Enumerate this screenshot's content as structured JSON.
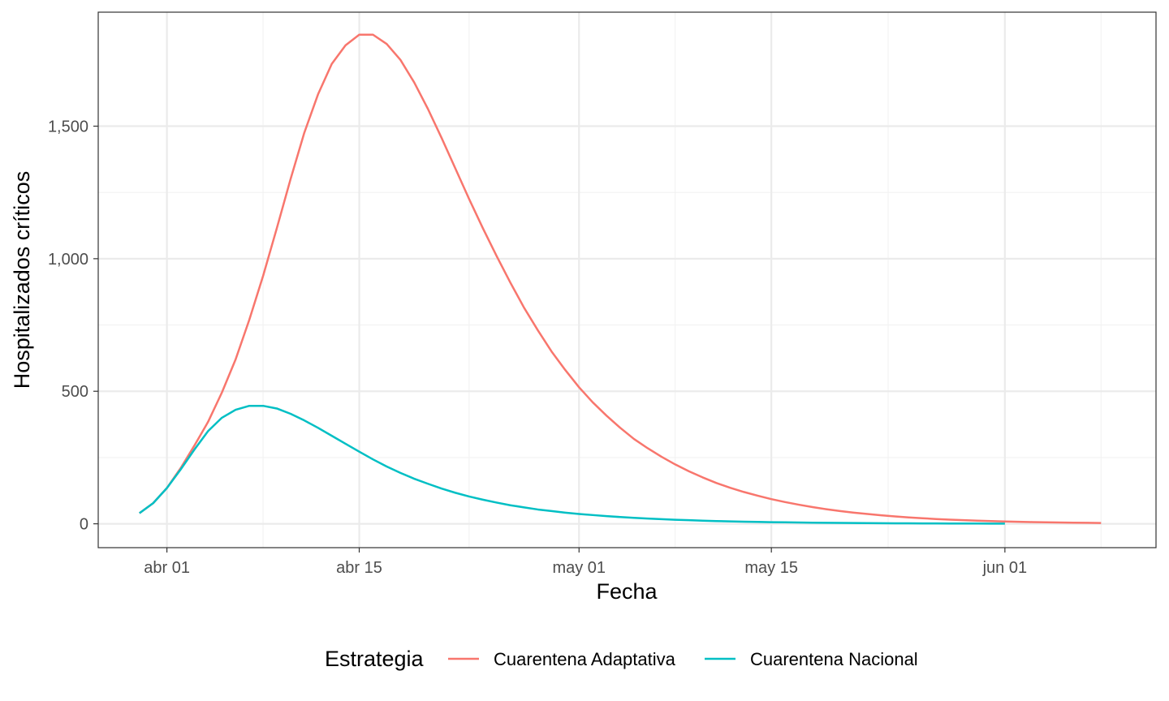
{
  "chart_data": {
    "type": "line",
    "xlabel": "Fecha",
    "ylabel": "Hospitalizados críticos",
    "x_tick_labels": [
      {
        "date": "2020-04-01",
        "label": "abr 01"
      },
      {
        "date": "2020-04-15",
        "label": "abr 15"
      },
      {
        "date": "2020-05-01",
        "label": "may 01"
      },
      {
        "date": "2020-05-15",
        "label": "may 15"
      },
      {
        "date": "2020-06-01",
        "label": "jun 01"
      }
    ],
    "y_ticks": [
      0,
      500,
      1000,
      1500
    ],
    "y_tick_labels": [
      "0",
      "500",
      "1,000",
      "1,500"
    ],
    "xlim": [
      "2020-03-27",
      "2020-06-12"
    ],
    "ylim": [
      -90,
      1930
    ],
    "grid": true,
    "legend": {
      "title": "Estrategia",
      "position": "bottom"
    },
    "series": [
      {
        "name": "Cuarentena Adaptativa",
        "color": "#F8766D",
        "x_start": "2020-03-30",
        "values": [
          40,
          78,
          135,
          210,
          295,
          385,
          495,
          620,
          770,
          935,
          1115,
          1300,
          1475,
          1620,
          1735,
          1805,
          1845,
          1845,
          1810,
          1750,
          1665,
          1565,
          1455,
          1340,
          1225,
          1115,
          1010,
          910,
          815,
          730,
          650,
          580,
          515,
          458,
          408,
          362,
          320,
          285,
          253,
          224,
          198,
          175,
          154,
          136,
          120,
          106,
          93,
          82,
          72,
          63,
          55,
          48,
          42,
          37,
          32,
          28,
          24,
          21,
          18,
          15.5,
          13.5,
          11.7,
          10.1,
          8.7,
          7.5,
          6.5,
          5.6,
          4.8,
          4.2,
          3.6,
          3.1
        ]
      },
      {
        "name": "Cuarentena Nacional",
        "color": "#00BFC4",
        "x_start": "2020-03-30",
        "values": [
          40,
          78,
          135,
          205,
          280,
          350,
          400,
          430,
          445,
          445,
          435,
          415,
          390,
          362,
          332,
          302,
          272,
          243,
          216,
          192,
          170,
          151,
          133,
          117,
          103,
          91,
          80,
          70,
          62,
          54,
          48,
          42,
          37,
          33,
          29,
          25.5,
          22.5,
          19.8,
          17.4,
          15.3,
          13.5,
          11.9,
          10.4,
          9.2,
          8.1,
          7.1,
          6.2,
          5.5,
          4.8,
          4.2,
          3.7,
          3.3,
          2.9,
          2.5,
          2.2,
          2.0,
          1.7,
          1.5,
          1.3,
          1.2,
          1.0,
          0.9,
          0.8,
          0.7
        ]
      }
    ]
  }
}
